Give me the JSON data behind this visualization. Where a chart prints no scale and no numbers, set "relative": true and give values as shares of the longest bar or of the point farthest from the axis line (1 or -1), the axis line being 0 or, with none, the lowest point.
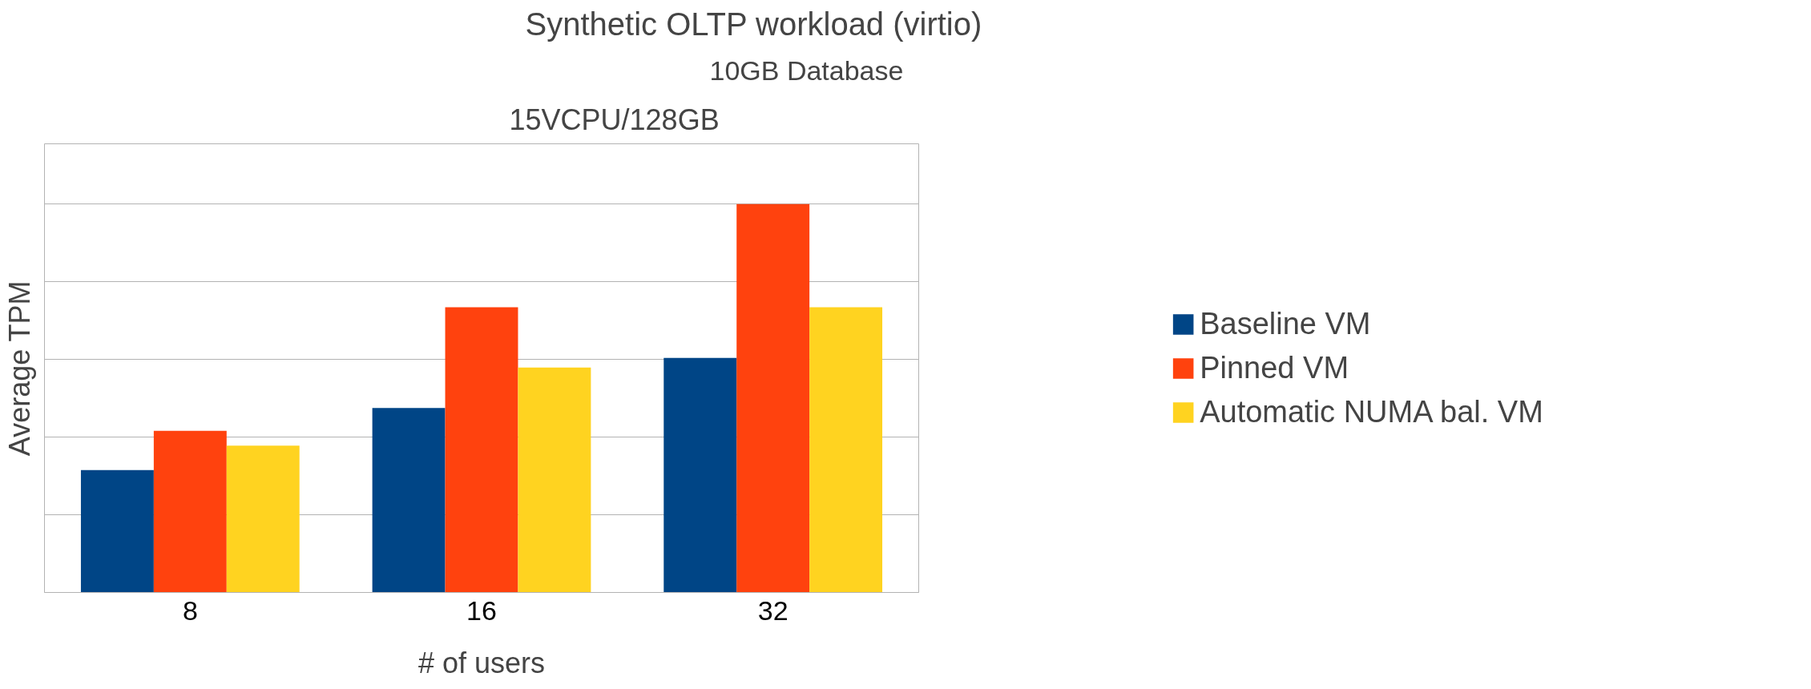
{
  "chart_data": {
    "type": "bar",
    "title": "Synthetic OLTP workload (virtio)",
    "subtitle": "10GB Database",
    "annotations": [
      "15VCPU/128GB"
    ],
    "xlabel": "# of users",
    "ylabel": "Average TPM",
    "categories": [
      "8",
      "16",
      "32"
    ],
    "relative": true,
    "grid": "y",
    "legend": "right",
    "series": [
      {
        "name": "Baseline VM",
        "color": "#004586",
        "values": [
          0.315,
          0.475,
          0.604
        ]
      },
      {
        "name": "Pinned VM",
        "color": "#ff420e",
        "values": [
          0.416,
          0.734,
          1
        ]
      },
      {
        "name": "Automatic NUMA bal. VM",
        "color": "#ffd320",
        "values": [
          0.378,
          0.579,
          0.734
        ]
      }
    ]
  }
}
